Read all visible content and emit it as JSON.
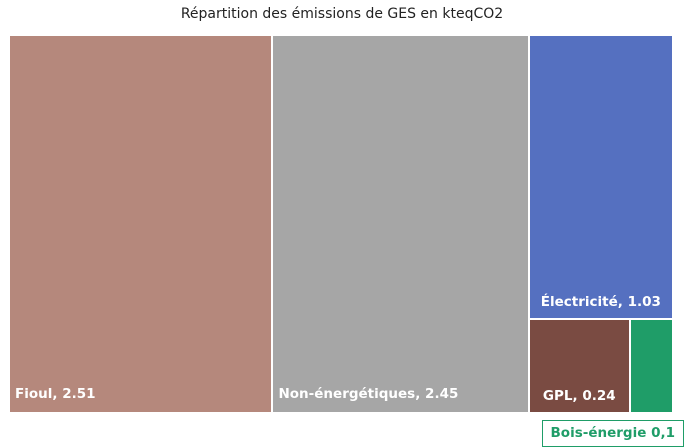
{
  "chart_data": {
    "type": "treemap",
    "title": "Répartition des émissions de GES en kteqCO2",
    "categories": [
      "Fioul",
      "Non-énergétiques",
      "Électricité",
      "GPL",
      "Bois-énergie"
    ],
    "values": [
      2.51,
      2.45,
      1.03,
      0.24,
      0.1
    ],
    "value_labels": [
      "Fioul, 2.51",
      "Non-énergétiques, 2.45",
      "Électricité, 1.03",
      "GPL, 0.24",
      "Bois-énergie 0,1"
    ],
    "colors": [
      "#b5887c",
      "#a6a6a6",
      "#5570c0",
      "#7a4b42",
      "#1f9d68"
    ]
  }
}
